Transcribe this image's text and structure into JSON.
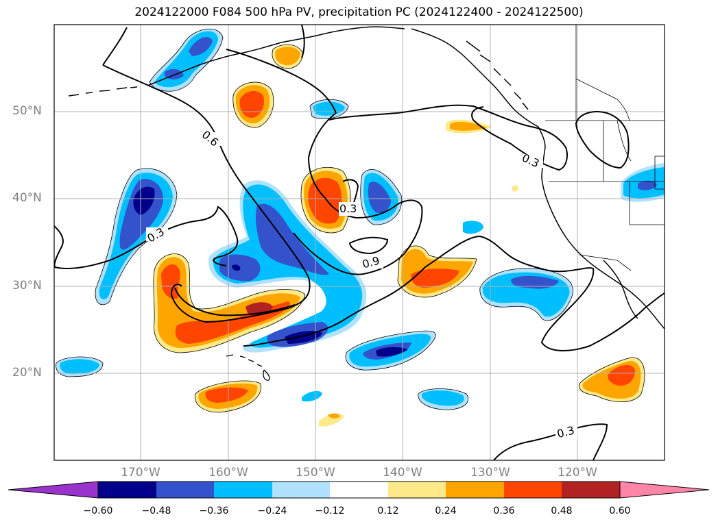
{
  "title": "2024122000 F084 500 hPa PV, precipitation PC (2024122400 - 2024122500)",
  "lat_labels": [
    "50°N",
    "40°N",
    "30°N",
    "20°N"
  ],
  "lon_labels": [
    "170°W",
    "160°W",
    "150°W",
    "140°W",
    "130°W",
    "120°W"
  ],
  "contour_labels": [
    "0.6",
    "0.3",
    "0.3",
    "0.9",
    "0.3",
    "0.3"
  ],
  "colorbar": {
    "ticks": [
      "−0.60",
      "−0.48",
      "−0.36",
      "−0.24",
      "−0.12",
      "0.12",
      "0.24",
      "0.36",
      "0.48",
      "0.60"
    ],
    "colors": [
      "#9a33cc",
      "#00008b",
      "#3352cc",
      "#00bfff",
      "#b0e2ff",
      "#ffffff",
      "#ffea8a",
      "#ffa500",
      "#ff4500",
      "#b22222",
      "#ff85a8"
    ]
  },
  "colors": {
    "grid": "#b0b0b0",
    "axis_label": "#808080",
    "contour": "#000000"
  }
}
